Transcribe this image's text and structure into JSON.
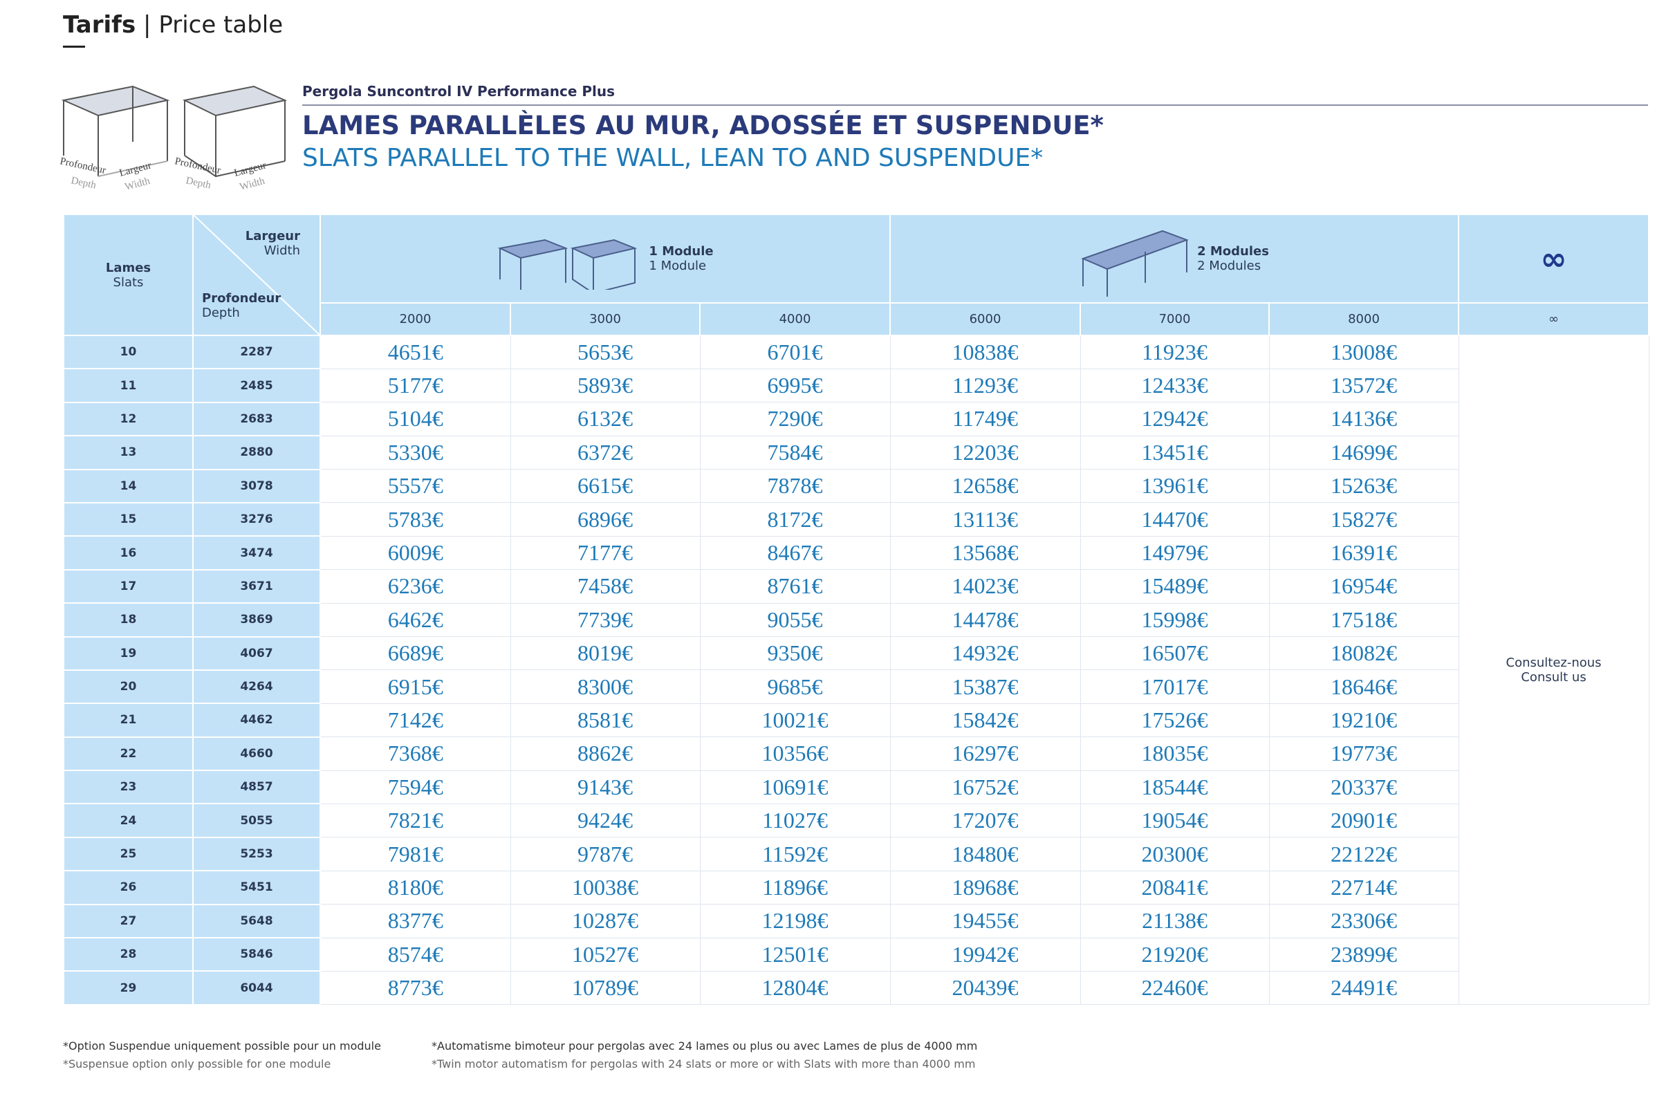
{
  "header": {
    "title": "Tarifs",
    "separator": "|",
    "subtitle": "Price table"
  },
  "illustration": {
    "depth_fr": "Profondeur",
    "depth_en": "Depth",
    "width_fr": "Largeur",
    "width_en": "Width"
  },
  "product": "Pergola Suncontrol IV Performance Plus",
  "heading_fr": "LAMES PARALLÈLES AU MUR, ADOSSÉE ET SUSPENDUE*",
  "heading_en": "SLATS PARALLEL TO THE WALL, LEAN TO AND SUSPENDUE*",
  "table": {
    "slats_fr": "Lames",
    "slats_en": "Slats",
    "width_fr": "Largeur",
    "width_en": "Width",
    "depth_fr": "Profondeur",
    "depth_en": "Depth",
    "module1_fr": "1 Module",
    "module1_en": "1 Module",
    "module2_fr": "2 Modules",
    "module2_en": "2 Modules",
    "infinity": "∞",
    "widths": [
      "2000",
      "3000",
      "4000",
      "6000",
      "7000",
      "8000",
      "∞"
    ],
    "consult_fr": "Consultez-nous",
    "consult_en": "Consult us",
    "rows": [
      [
        "10",
        "2287",
        "4651€",
        "5653€",
        "6701€",
        "10838€",
        "11923€",
        "13008€"
      ],
      [
        "11",
        "2485",
        "5177€",
        "5893€",
        "6995€",
        "11293€",
        "12433€",
        "13572€"
      ],
      [
        "12",
        "2683",
        "5104€",
        "6132€",
        "7290€",
        "11749€",
        "12942€",
        "14136€"
      ],
      [
        "13",
        "2880",
        "5330€",
        "6372€",
        "7584€",
        "12203€",
        "13451€",
        "14699€"
      ],
      [
        "14",
        "3078",
        "5557€",
        "6615€",
        "7878€",
        "12658€",
        "13961€",
        "15263€"
      ],
      [
        "15",
        "3276",
        "5783€",
        "6896€",
        "8172€",
        "13113€",
        "14470€",
        "15827€"
      ],
      [
        "16",
        "3474",
        "6009€",
        "7177€",
        "8467€",
        "13568€",
        "14979€",
        "16391€"
      ],
      [
        "17",
        "3671",
        "6236€",
        "7458€",
        "8761€",
        "14023€",
        "15489€",
        "16954€"
      ],
      [
        "18",
        "3869",
        "6462€",
        "7739€",
        "9055€",
        "14478€",
        "15998€",
        "17518€"
      ],
      [
        "19",
        "4067",
        "6689€",
        "8019€",
        "9350€",
        "14932€",
        "16507€",
        "18082€"
      ],
      [
        "20",
        "4264",
        "6915€",
        "8300€",
        "9685€",
        "15387€",
        "17017€",
        "18646€"
      ],
      [
        "21",
        "4462",
        "7142€",
        "8581€",
        "10021€",
        "15842€",
        "17526€",
        "19210€"
      ],
      [
        "22",
        "4660",
        "7368€",
        "8862€",
        "10356€",
        "16297€",
        "18035€",
        "19773€"
      ],
      [
        "23",
        "4857",
        "7594€",
        "9143€",
        "10691€",
        "16752€",
        "18544€",
        "20337€"
      ],
      [
        "24",
        "5055",
        "7821€",
        "9424€",
        "11027€",
        "17207€",
        "19054€",
        "20901€"
      ],
      [
        "25",
        "5253",
        "7981€",
        "9787€",
        "11592€",
        "18480€",
        "20300€",
        "22122€"
      ],
      [
        "26",
        "5451",
        "8180€",
        "10038€",
        "11896€",
        "18968€",
        "20841€",
        "22714€"
      ],
      [
        "27",
        "5648",
        "8377€",
        "10287€",
        "12198€",
        "19455€",
        "21138€",
        "23306€"
      ],
      [
        "28",
        "5846",
        "8574€",
        "10527€",
        "12501€",
        "19942€",
        "21920€",
        "23899€"
      ],
      [
        "29",
        "6044",
        "8773€",
        "10789€",
        "12804€",
        "20439€",
        "22460€",
        "24491€"
      ]
    ]
  },
  "footnotes": {
    "left_fr": "*Option Suspendue uniquement possible pour un module",
    "left_en": "*Suspensue option only possible for one module",
    "right_fr": "*Automatisme bimoteur pour pergolas avec 24 lames ou plus ou avec Lames de plus de 4000 mm",
    "right_en": "*Twin motor automatism for pergolas with 24 slats or more or with Slats with more than 4000 mm"
  }
}
